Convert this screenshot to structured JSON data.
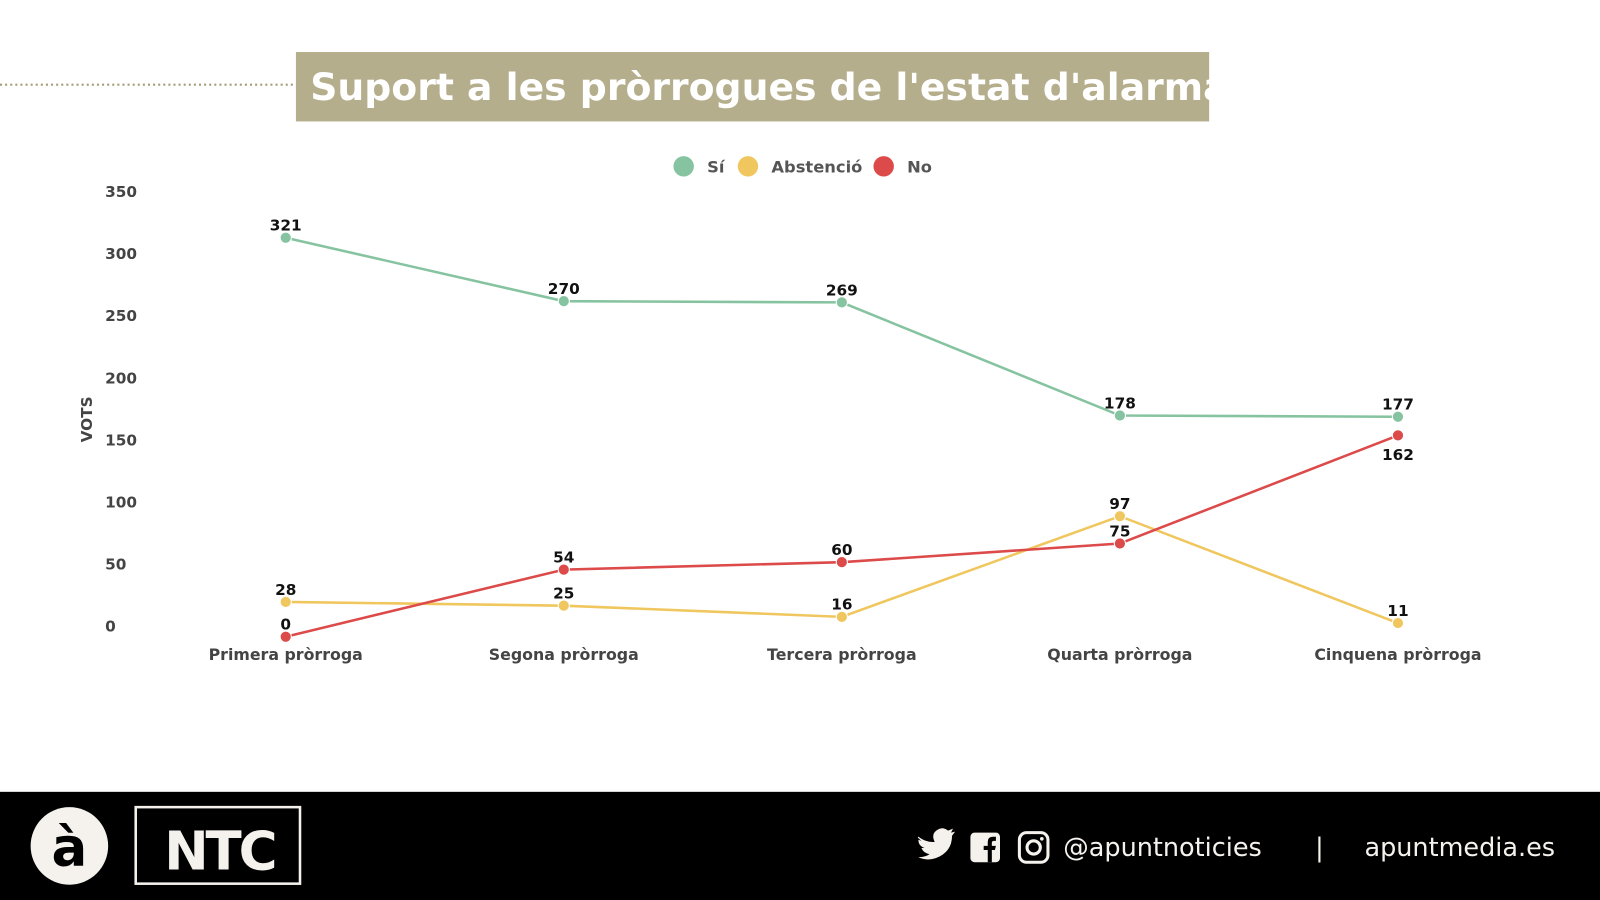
{
  "chart_data": {
    "type": "line",
    "title": "Suport a les pròrrogues de l'estat d'alarma",
    "ylabel": "VOTS",
    "xlabel": "",
    "categories": [
      "Primera pròrroga",
      "Segona pròrroga",
      "Tercera pròrroga",
      "Quarta pròrroga",
      "Cinquena pròrroga"
    ],
    "yticks": [
      0,
      50,
      100,
      150,
      200,
      250,
      300,
      350
    ],
    "ylim": [
      0,
      350
    ],
    "grid": false,
    "legend_position": "top-center",
    "series": [
      {
        "name": "Sí",
        "color": "#86c3a0",
        "values": [
          321,
          270,
          269,
          178,
          177
        ],
        "label_pos": [
          "above",
          "above",
          "above",
          "above",
          "above"
        ]
      },
      {
        "name": "Abstenció",
        "color": "#f0c75e",
        "values": [
          28,
          25,
          16,
          97,
          11
        ],
        "label_pos": [
          "above",
          "above",
          "above",
          "above",
          "above"
        ]
      },
      {
        "name": "No",
        "color": "#dc4a4a",
        "values": [
          0,
          54,
          60,
          75,
          162
        ],
        "label_pos": [
          "above",
          "above",
          "above",
          "above",
          "below"
        ]
      }
    ]
  },
  "colors": {
    "title_bg": "#b5ae8c",
    "footer_bg": "#000000"
  },
  "footer": {
    "logo_letter": "à",
    "brand": "NTC",
    "icons": [
      "twitter-icon",
      "facebook-icon",
      "instagram-icon"
    ],
    "handle": "@apuntnoticies",
    "separator": "|",
    "website": "apuntmedia.es"
  }
}
